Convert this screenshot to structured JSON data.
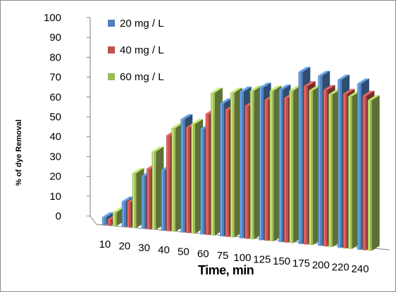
{
  "chart_data": {
    "type": "bar",
    "title": "",
    "xlabel": "Time, min",
    "ylabel": "% of dye Removal",
    "ylim": [
      0,
      100
    ],
    "yticks": [
      "0",
      "10",
      "20",
      "30",
      "40",
      "50",
      "60",
      "70",
      "80",
      "90",
      "100"
    ],
    "categories": [
      "10",
      "20",
      "30",
      "40",
      "50",
      "60",
      "75",
      "100",
      "125",
      "150",
      "175",
      "200",
      "220",
      "240"
    ],
    "series": [
      {
        "name": "20 mg / L",
        "color": "#4f81bd",
        "values": [
          4,
          13,
          27,
          31,
          58,
          54,
          68,
          75,
          78,
          78,
          88,
          87,
          86,
          85
        ]
      },
      {
        "name": "40 mg / L",
        "color": "#c0504d",
        "values": [
          3,
          13,
          31,
          49,
          54,
          62,
          65,
          68,
          72,
          74,
          81,
          80,
          79,
          79
        ]
      },
      {
        "name": "60 mg / L",
        "color": "#9bbb59",
        "values": [
          7,
          28,
          40,
          53,
          56,
          73,
          74,
          76,
          77,
          78,
          79,
          78,
          78,
          77
        ]
      }
    ],
    "grid": false,
    "legend_position": "top-left"
  }
}
